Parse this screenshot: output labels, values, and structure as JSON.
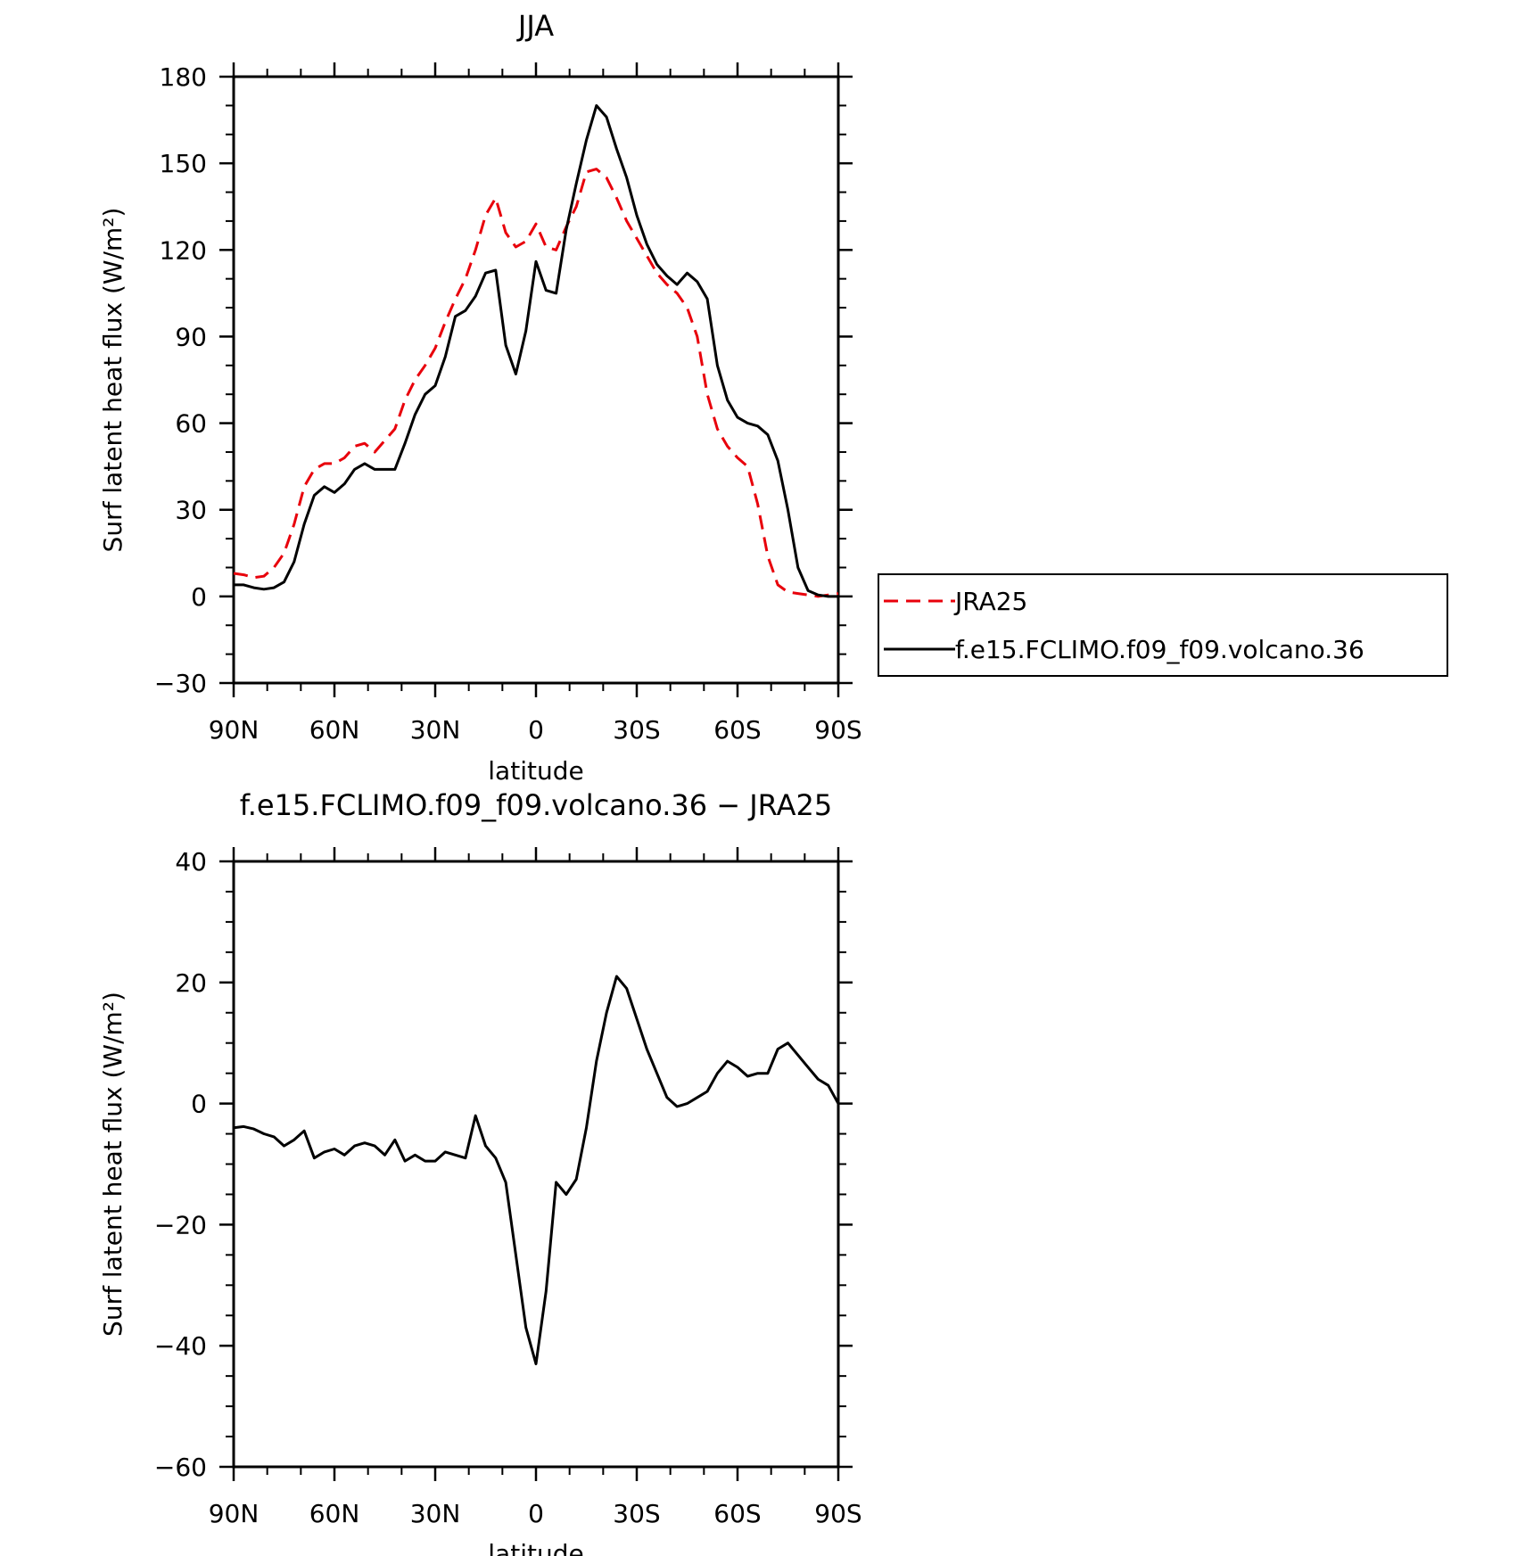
{
  "chart_data": [
    {
      "type": "line",
      "title": "JJA",
      "xlabel": "latitude",
      "ylabel": "Surf latent heat flux (W/m²)",
      "xlim": [
        90,
        -90
      ],
      "ylim": [
        -30,
        180
      ],
      "yticks": [
        "−30",
        "0",
        "30",
        "60",
        "90",
        "120",
        "150",
        "180"
      ],
      "yticks_values": [
        -30,
        0,
        30,
        60,
        90,
        120,
        150,
        180
      ],
      "xticks": [
        "90N",
        "60N",
        "30N",
        "0",
        "30S",
        "60S",
        "90S"
      ],
      "xticks_values": [
        90,
        60,
        30,
        0,
        -30,
        -60,
        -90
      ],
      "legend": {
        "placement": "right"
      },
      "series": [
        {
          "name": "JRA25",
          "color": "#e8000b",
          "style": "dashed",
          "x": [
            90,
            87,
            84,
            81,
            78,
            75,
            72,
            69,
            66,
            63,
            60,
            57,
            54,
            51,
            48,
            45,
            42,
            39,
            36,
            33,
            30,
            27,
            24,
            21,
            18,
            15,
            12,
            9,
            6,
            3,
            0,
            -3,
            -6,
            -9,
            -12,
            -15,
            -18,
            -21,
            -24,
            -27,
            -30,
            -33,
            -36,
            -39,
            -42,
            -45,
            -48,
            -51,
            -54,
            -57,
            -60,
            -63,
            -66,
            -69,
            -72,
            -75,
            -78,
            -81,
            -84,
            -87,
            -90
          ],
          "y": [
            8,
            7.5,
            6.5,
            7,
            10,
            15,
            25,
            38,
            44,
            46,
            46,
            48,
            52,
            53,
            50,
            54,
            58,
            68,
            75,
            80,
            86,
            95,
            103,
            110,
            120,
            132,
            138,
            126,
            121,
            123,
            129,
            121,
            120,
            128,
            135,
            147,
            148,
            145,
            138,
            130,
            124,
            118,
            112,
            108,
            105,
            100,
            90,
            70,
            58,
            52,
            48,
            45,
            32,
            14,
            4,
            1.5,
            1,
            0.5,
            0,
            0.5,
            1
          ]
        },
        {
          "name": "f.e15.FCLIMO.f09_f09.volcano.36",
          "color": "#000000",
          "style": "solid",
          "x": [
            90,
            87,
            84,
            81,
            78,
            75,
            72,
            69,
            66,
            63,
            60,
            57,
            54,
            51,
            48,
            45,
            42,
            39,
            36,
            33,
            30,
            27,
            24,
            21,
            18,
            15,
            12,
            9,
            6,
            3,
            0,
            -3,
            -6,
            -9,
            -12,
            -15,
            -18,
            -21,
            -24,
            -27,
            -30,
            -33,
            -36,
            -39,
            -42,
            -45,
            -48,
            -51,
            -54,
            -57,
            -60,
            -63,
            -66,
            -69,
            -72,
            -75,
            -78,
            -81,
            -84,
            -87,
            -90
          ],
          "y": [
            4,
            4,
            3,
            2.5,
            3,
            5,
            12,
            25,
            35,
            38,
            36,
            39,
            44,
            46,
            44,
            44,
            44,
            53,
            63,
            70,
            73,
            83,
            97,
            99,
            104,
            112,
            113,
            87,
            77,
            92,
            116,
            106,
            105,
            127,
            143,
            158,
            170,
            166,
            155,
            145,
            132,
            122,
            115,
            111,
            108,
            112,
            109,
            103,
            80,
            68,
            62,
            60,
            59,
            56,
            47,
            30,
            10,
            2,
            0.5,
            0,
            0
          ]
        }
      ]
    },
    {
      "type": "line",
      "title": "f.e15.FCLIMO.f09_f09.volcano.36 − JRA25",
      "xlabel": "latitude",
      "ylabel": "Surf latent heat flux (W/m²)",
      "xlim": [
        90,
        -90
      ],
      "ylim": [
        -60,
        40
      ],
      "yticks": [
        "−60",
        "−40",
        "−20",
        "0",
        "20",
        "40"
      ],
      "yticks_values": [
        -60,
        -40,
        -20,
        0,
        20,
        40
      ],
      "xticks": [
        "90N",
        "60N",
        "30N",
        "0",
        "30S",
        "60S",
        "90S"
      ],
      "xticks_values": [
        90,
        60,
        30,
        0,
        -30,
        -60,
        -90
      ],
      "series": [
        {
          "color": "#000000",
          "style": "solid",
          "x": [
            90,
            87,
            84,
            81,
            78,
            75,
            72,
            69,
            66,
            63,
            60,
            57,
            54,
            51,
            48,
            45,
            42,
            39,
            36,
            33,
            30,
            27,
            24,
            21,
            18,
            15,
            12,
            9,
            6,
            3,
            0,
            -3,
            -6,
            -9,
            -12,
            -15,
            -18,
            -21,
            -24,
            -27,
            -30,
            -33,
            -36,
            -39,
            -42,
            -45,
            -48,
            -51,
            -54,
            -57,
            -60,
            -63,
            -66,
            -69,
            -72,
            -75,
            -78,
            -81,
            -84,
            -87,
            -90
          ],
          "y": [
            -4,
            -3.8,
            -4.2,
            -5,
            -5.5,
            -7,
            -6,
            -4.5,
            -9,
            -8,
            -7.5,
            -8.5,
            -7,
            -6.5,
            -7,
            -8.5,
            -6,
            -9.5,
            -8.5,
            -9.5,
            -9.5,
            -8,
            -8.5,
            -9,
            -2,
            -7,
            -9,
            -13,
            -25,
            -37,
            -43,
            -31,
            -13,
            -15,
            -12.5,
            -4,
            7,
            15,
            21,
            19,
            14,
            9,
            5,
            1,
            -0.5,
            0,
            1,
            2,
            5,
            7,
            6,
            4.5,
            5,
            5,
            9,
            10,
            8,
            6,
            4,
            3,
            0
          ]
        }
      ]
    }
  ]
}
